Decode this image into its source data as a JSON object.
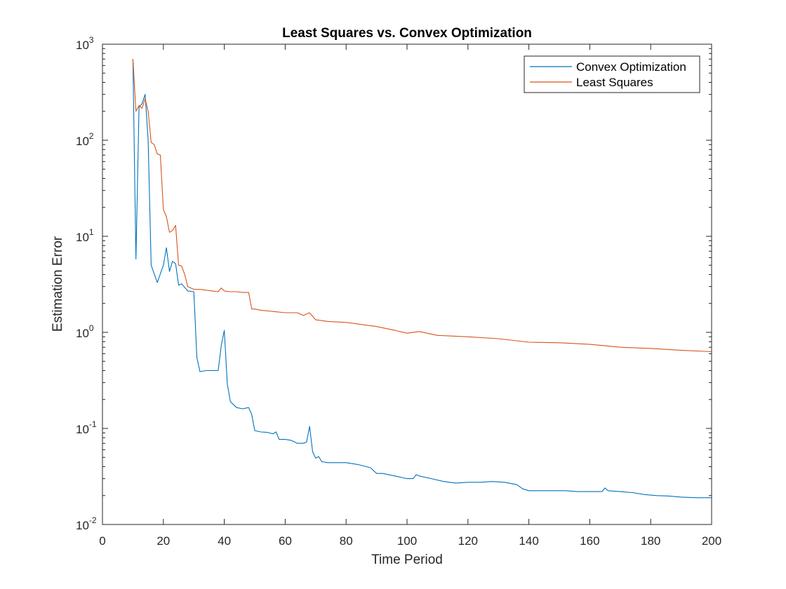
{
  "chart_data": {
    "type": "line",
    "title": "Least Squares vs. Convex Optimization",
    "xlabel": "Time Period",
    "ylabel": "Estimation Error",
    "xlim": [
      0,
      200
    ],
    "ylim": [
      0.01,
      1000
    ],
    "yscale": "log",
    "grid": false,
    "legend_position": "top-right",
    "x_ticks": [
      0,
      20,
      40,
      60,
      80,
      100,
      120,
      140,
      160,
      180,
      200
    ],
    "y_ticks": [
      {
        "value": 0.01,
        "base": "10",
        "exp": "-2"
      },
      {
        "value": 0.1,
        "base": "10",
        "exp": "-1"
      },
      {
        "value": 1,
        "base": "10",
        "exp": "0"
      },
      {
        "value": 10,
        "base": "10",
        "exp": "1"
      },
      {
        "value": 100,
        "base": "10",
        "exp": "2"
      },
      {
        "value": 1000,
        "base": "10",
        "exp": "3"
      }
    ],
    "series": [
      {
        "name": "Convex Optimization",
        "color": "#0072bd",
        "x": [
          10,
          11,
          12,
          13,
          14,
          15,
          16,
          18,
          20,
          21,
          22,
          23,
          24,
          25,
          26,
          28,
          30,
          31,
          32,
          34,
          36,
          38,
          39,
          40,
          41,
          42,
          44,
          46,
          48,
          49,
          50,
          52,
          54,
          56,
          57,
          58,
          60,
          62,
          64,
          66,
          67,
          68,
          69,
          70,
          71,
          72,
          74,
          76,
          80,
          84,
          88,
          90,
          92,
          96,
          100,
          102,
          103,
          104,
          108,
          112,
          116,
          120,
          124,
          128,
          132,
          136,
          138,
          140,
          144,
          148,
          152,
          156,
          160,
          164,
          165,
          166,
          170,
          174,
          178,
          182,
          186,
          190,
          195,
          200
        ],
        "y": [
          700,
          5.8,
          220,
          240,
          300,
          100,
          5.0,
          3.3,
          5.0,
          7.6,
          4.3,
          5.5,
          5.2,
          3.1,
          3.2,
          2.7,
          2.65,
          0.55,
          0.39,
          0.4,
          0.4,
          0.4,
          0.73,
          1.05,
          0.29,
          0.19,
          0.165,
          0.16,
          0.165,
          0.14,
          0.095,
          0.092,
          0.091,
          0.088,
          0.092,
          0.077,
          0.077,
          0.075,
          0.07,
          0.07,
          0.072,
          0.105,
          0.057,
          0.049,
          0.051,
          0.045,
          0.044,
          0.044,
          0.044,
          0.042,
          0.039,
          0.034,
          0.034,
          0.032,
          0.03,
          0.03,
          0.033,
          0.032,
          0.03,
          0.028,
          0.027,
          0.0275,
          0.0275,
          0.028,
          0.0275,
          0.026,
          0.0235,
          0.0225,
          0.0225,
          0.0225,
          0.0225,
          0.022,
          0.022,
          0.022,
          0.024,
          0.0225,
          0.022,
          0.0215,
          0.0205,
          0.02,
          0.0198,
          0.0193,
          0.019,
          0.019
        ]
      },
      {
        "name": "Least Squares",
        "color": "#d95319",
        "x": [
          10,
          11,
          12,
          13,
          14,
          15,
          16,
          17,
          18,
          19,
          20,
          21,
          22,
          23,
          24,
          25,
          26,
          27,
          28,
          30,
          32,
          34,
          36,
          38,
          39,
          40,
          42,
          44,
          46,
          48,
          49,
          50,
          52,
          56,
          60,
          64,
          66,
          68,
          70,
          74,
          80,
          90,
          96,
          100,
          104,
          110,
          120,
          130,
          140,
          150,
          160,
          170,
          180,
          190,
          200
        ],
        "y": [
          700,
          200,
          230,
          215,
          270,
          200,
          95,
          90,
          72,
          70,
          19,
          16,
          11,
          11.5,
          13,
          5,
          4.9,
          4,
          3.0,
          2.8,
          2.8,
          2.75,
          2.7,
          2.65,
          2.9,
          2.7,
          2.65,
          2.65,
          2.6,
          2.6,
          1.75,
          1.75,
          1.7,
          1.65,
          1.6,
          1.6,
          1.5,
          1.6,
          1.35,
          1.3,
          1.27,
          1.15,
          1.05,
          0.98,
          1.02,
          0.93,
          0.9,
          0.86,
          0.79,
          0.78,
          0.75,
          0.7,
          0.68,
          0.65,
          0.63
        ]
      }
    ]
  }
}
